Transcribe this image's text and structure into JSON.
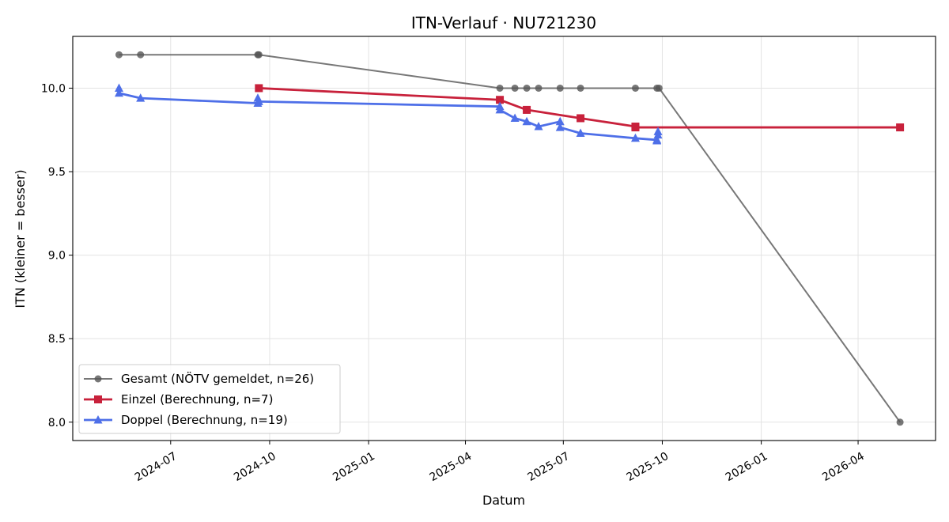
{
  "chart_data": {
    "type": "line",
    "title": "ITN-Verlauf · NU721230",
    "xlabel": "Datum",
    "ylabel": "ITN  (kleiner = besser)",
    "x_axis_type": "date",
    "xlim": [
      "2024-04-01",
      "2026-06-12"
    ],
    "ylim": [
      7.89,
      10.31
    ],
    "x_ticks": [
      {
        "date": "2024-07-01",
        "label": "2024-07"
      },
      {
        "date": "2024-10-01",
        "label": "2024-10"
      },
      {
        "date": "2025-01-01",
        "label": "2025-01"
      },
      {
        "date": "2025-04-01",
        "label": "2025-04"
      },
      {
        "date": "2025-07-01",
        "label": "2025-07"
      },
      {
        "date": "2025-10-01",
        "label": "2025-10"
      },
      {
        "date": "2026-01-01",
        "label": "2026-01"
      },
      {
        "date": "2026-04-01",
        "label": "2026-04"
      }
    ],
    "y_ticks": [
      {
        "value": 8.0,
        "label": "8.0"
      },
      {
        "value": 8.5,
        "label": "8.5"
      },
      {
        "value": 9.0,
        "label": "9.0"
      },
      {
        "value": 9.5,
        "label": "9.5"
      },
      {
        "value": 10.0,
        "label": "10.0"
      }
    ],
    "grid": true,
    "legend_position": "lower-left",
    "series": [
      {
        "name": "Gesamt (NÖTV gemeldet, n=26)",
        "color": "#555555",
        "marker": "circle",
        "points": [
          {
            "x": "2024-05-14",
            "y": 10.2
          },
          {
            "x": "2024-06-03",
            "y": 10.2
          },
          {
            "x": "2024-09-20",
            "y": 10.2
          },
          {
            "x": "2024-09-21",
            "y": 10.2
          },
          {
            "x": "2025-05-03",
            "y": 10.0
          },
          {
            "x": "2025-05-17",
            "y": 10.0
          },
          {
            "x": "2025-05-28",
            "y": 10.0
          },
          {
            "x": "2025-06-08",
            "y": 10.0
          },
          {
            "x": "2025-06-28",
            "y": 10.0
          },
          {
            "x": "2025-07-17",
            "y": 10.0
          },
          {
            "x": "2025-09-06",
            "y": 10.0
          },
          {
            "x": "2025-09-26",
            "y": 10.0
          },
          {
            "x": "2025-09-28",
            "y": 10.0
          },
          {
            "x": "2026-05-10",
            "y": 8.0
          }
        ]
      },
      {
        "name": "Einzel (Berechnung, n=7)",
        "color": "#c8213b",
        "marker": "square",
        "points": [
          {
            "x": "2024-09-21",
            "y": 10.0
          },
          {
            "x": "2025-05-03",
            "y": 9.93
          },
          {
            "x": "2025-05-28",
            "y": 9.87
          },
          {
            "x": "2025-07-17",
            "y": 9.82
          },
          {
            "x": "2025-09-06",
            "y": 9.77
          },
          {
            "x": "2025-09-06",
            "y": 9.765
          },
          {
            "x": "2026-05-10",
            "y": 9.765
          }
        ]
      },
      {
        "name": "Doppel (Berechnung, n=19)",
        "color": "#4e6fe8",
        "marker": "triangle",
        "points": [
          {
            "x": "2024-05-14",
            "y": 10.0
          },
          {
            "x": "2024-05-14",
            "y": 9.97
          },
          {
            "x": "2024-06-03",
            "y": 9.94
          },
          {
            "x": "2024-09-20",
            "y": 9.91
          },
          {
            "x": "2024-09-20",
            "y": 9.94
          },
          {
            "x": "2024-09-21",
            "y": 9.92
          },
          {
            "x": "2025-05-03",
            "y": 9.89
          },
          {
            "x": "2025-05-03",
            "y": 9.87
          },
          {
            "x": "2025-05-17",
            "y": 9.82
          },
          {
            "x": "2025-05-28",
            "y": 9.8
          },
          {
            "x": "2025-06-08",
            "y": 9.77
          },
          {
            "x": "2025-06-28",
            "y": 9.8
          },
          {
            "x": "2025-06-28",
            "y": 9.765
          },
          {
            "x": "2025-07-17",
            "y": 9.73
          },
          {
            "x": "2025-09-06",
            "y": 9.7
          },
          {
            "x": "2025-09-26",
            "y": 9.69
          },
          {
            "x": "2025-09-26",
            "y": 9.685
          },
          {
            "x": "2025-09-27",
            "y": 9.72
          },
          {
            "x": "2025-09-27",
            "y": 9.74
          }
        ]
      }
    ]
  }
}
